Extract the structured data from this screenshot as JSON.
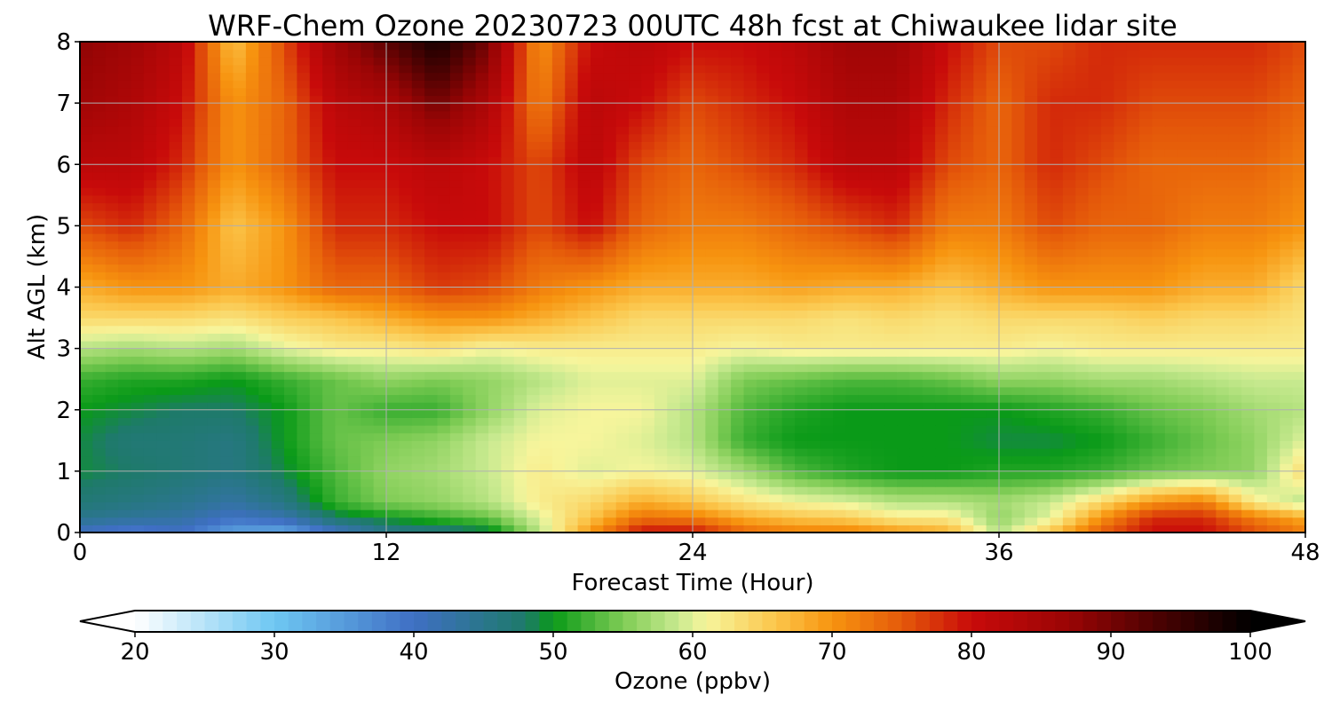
{
  "chart_data": {
    "type": "heatmap",
    "title": "WRF-Chem Ozone  20230723 00UTC 48h fcst at Chiwaukee lidar site",
    "xlabel": "Forecast Time (Hour)",
    "ylabel": "Alt AGL (km)",
    "xlim": [
      0,
      48
    ],
    "ylim": [
      0,
      8
    ],
    "xticks": [
      "0",
      "12",
      "24",
      "36",
      "48"
    ],
    "yticks": [
      "0",
      "1",
      "2",
      "3",
      "4",
      "5",
      "6",
      "7",
      "8"
    ],
    "grid": true,
    "colorbar": {
      "label": "Ozone  (ppbv)",
      "range": [
        20,
        100
      ],
      "ticks": [
        "20",
        "30",
        "40",
        "50",
        "60",
        "70",
        "80",
        "90",
        "100"
      ],
      "extend": "both",
      "colors": {
        "20": "#ffffff",
        "30": "#6ec7f2",
        "40": "#3f6fc4",
        "48": "#1e7a6a",
        "50": "#0a9a18",
        "55": "#7fcc55",
        "59": "#c9ea90",
        "61": "#f7f59c",
        "66": "#fbc54a",
        "70": "#f7940f",
        "75": "#e55a0a",
        "80": "#c80a0a",
        "87": "#9a0505",
        "93": "#4f0202",
        "100": "#000000"
      }
    },
    "x": [
      0,
      2,
      4,
      6,
      8,
      10,
      12,
      14,
      16,
      18,
      20,
      22,
      24,
      26,
      28,
      30,
      32,
      34,
      36,
      38,
      40,
      42,
      44,
      46,
      48
    ],
    "y": [
      0,
      0.25,
      0.5,
      1,
      1.5,
      2,
      2.5,
      3,
      3.5,
      4,
      5,
      6,
      7,
      8
    ],
    "z": [
      [
        40,
        38,
        40,
        34,
        33,
        40,
        45,
        46,
        48,
        58,
        70,
        80,
        80,
        74,
        72,
        72,
        70,
        68,
        58,
        66,
        75,
        80,
        80,
        76,
        72
      ],
      [
        45,
        44,
        43,
        40,
        42,
        48,
        50,
        52,
        54,
        60,
        66,
        73,
        72,
        68,
        66,
        65,
        62,
        62,
        56,
        60,
        70,
        78,
        78,
        72,
        68
      ],
      [
        47,
        46,
        45,
        43,
        46,
        52,
        55,
        56,
        58,
        62,
        64,
        68,
        66,
        63,
        61,
        60,
        58,
        58,
        57,
        59,
        64,
        70,
        72,
        62,
        58
      ],
      [
        49,
        48,
        47,
        46,
        49,
        53,
        56,
        57,
        59,
        62,
        60,
        61,
        60,
        57,
        53,
        51,
        50,
        50,
        51,
        51,
        52,
        54,
        55,
        56,
        64
      ],
      [
        49,
        47,
        47,
        46,
        50,
        54,
        55,
        56,
        59,
        61,
        61,
        60,
        58,
        52,
        50,
        50,
        50,
        50,
        49,
        49,
        50,
        52,
        54,
        56,
        60
      ],
      [
        50,
        49,
        48,
        48,
        50,
        54,
        52,
        52,
        56,
        60,
        61,
        61,
        58,
        53,
        51,
        50,
        50,
        50,
        50,
        51,
        52,
        54,
        55,
        57,
        58
      ],
      [
        52,
        51,
        51,
        50,
        52,
        54,
        56,
        55,
        56,
        58,
        60,
        60,
        60,
        55,
        54,
        53,
        53,
        54,
        56,
        56,
        57,
        57,
        58,
        59,
        59
      ],
      [
        58,
        57,
        58,
        57,
        60,
        62,
        62,
        63,
        61,
        62,
        62,
        62,
        62,
        61,
        62,
        62,
        62,
        62,
        62,
        61,
        62,
        62,
        62,
        62,
        62
      ],
      [
        64,
        64,
        64,
        63,
        65,
        66,
        68,
        70,
        70,
        68,
        66,
        64,
        64,
        64,
        64,
        63,
        64,
        63,
        64,
        64,
        64,
        65,
        64,
        64,
        63
      ],
      [
        68,
        70,
        70,
        68,
        70,
        74,
        74,
        77,
        76,
        72,
        70,
        68,
        68,
        68,
        69,
        68,
        68,
        66,
        68,
        70,
        70,
        70,
        68,
        68,
        64
      ],
      [
        76,
        78,
        74,
        66,
        70,
        78,
        78,
        80,
        80,
        76,
        80,
        74,
        72,
        72,
        74,
        76,
        78,
        72,
        72,
        76,
        74,
        74,
        72,
        72,
        70
      ],
      [
        82,
        82,
        78,
        70,
        74,
        80,
        80,
        82,
        80,
        76,
        82,
        76,
        74,
        76,
        78,
        82,
        82,
        76,
        74,
        78,
        76,
        74,
        74,
        74,
        72
      ],
      [
        86,
        84,
        80,
        70,
        74,
        82,
        84,
        90,
        84,
        72,
        82,
        80,
        76,
        78,
        80,
        84,
        84,
        78,
        74,
        78,
        78,
        76,
        76,
        76,
        74
      ],
      [
        88,
        86,
        82,
        66,
        76,
        86,
        92,
        98,
        90,
        70,
        80,
        82,
        80,
        80,
        82,
        86,
        86,
        80,
        76,
        76,
        78,
        78,
        78,
        78,
        76
      ]
    ]
  }
}
